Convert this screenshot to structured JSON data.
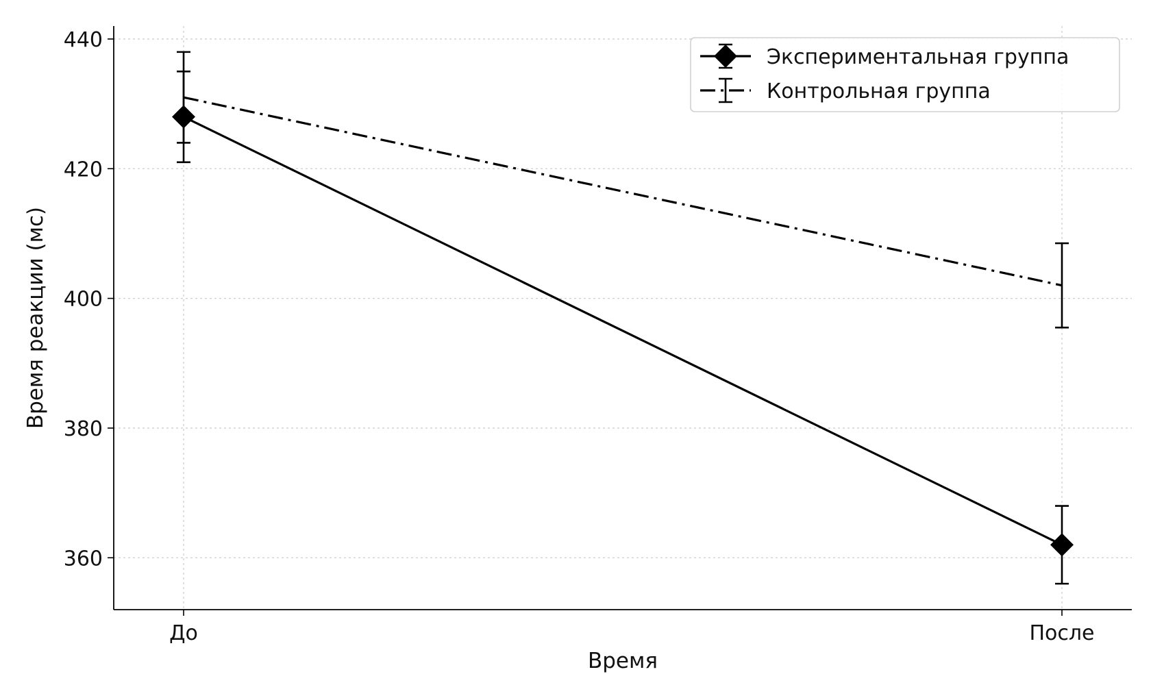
{
  "chart_data": {
    "type": "line",
    "categories": [
      "До",
      "После"
    ],
    "xlabel": "Время",
    "ylabel": "Время реакции (мс)",
    "ylim": [
      352,
      442
    ],
    "yticks": [
      360,
      380,
      400,
      420,
      440
    ],
    "grid": true,
    "legend_position": "top-right",
    "series": [
      {
        "name": "Экспериментальная группа",
        "values": [
          428,
          362
        ],
        "error": [
          7,
          6
        ],
        "line_style": "solid",
        "marker": "diamond",
        "color": "#000000"
      },
      {
        "name": "Контрольная группа",
        "values": [
          431,
          402
        ],
        "error": [
          7,
          6.5
        ],
        "line_style": "dash-dot",
        "marker": "none",
        "color": "#000000"
      }
    ]
  }
}
